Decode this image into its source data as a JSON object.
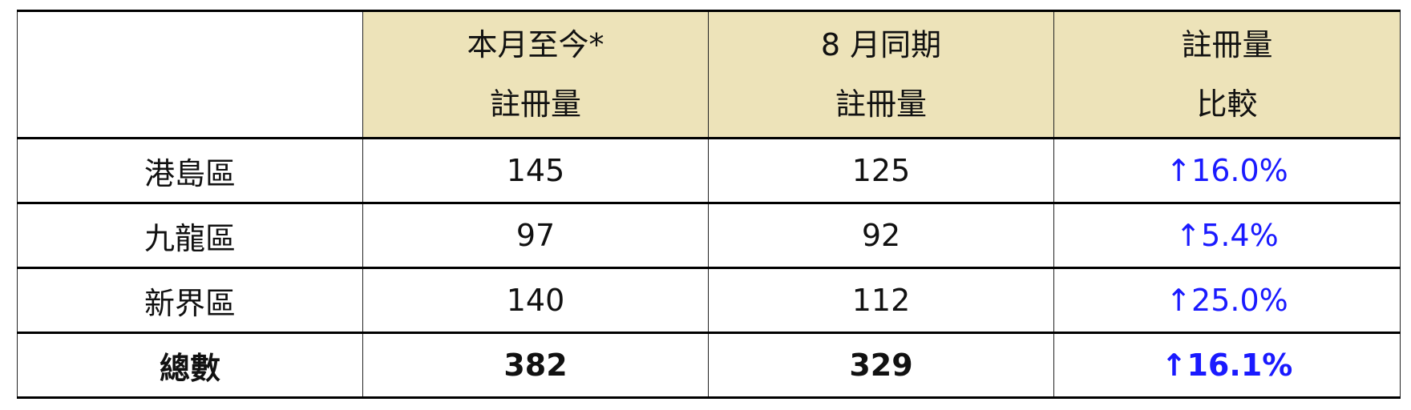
{
  "header": {
    "col1": {
      "line1": "本月至今*",
      "line2": "註冊量"
    },
    "col2": {
      "line1": "8 月同期",
      "line2": "註冊量"
    },
    "col3": {
      "line1": "註冊量",
      "line2": "比較"
    }
  },
  "rows": [
    {
      "region": "港島區",
      "current": "145",
      "same_period": "125",
      "change": "↑16.0%"
    },
    {
      "region": "九龍區",
      "current": "97",
      "same_period": "92",
      "change": "↑5.4%"
    },
    {
      "region": "新界區",
      "current": "140",
      "same_period": "112",
      "change": "↑25.0%"
    }
  ],
  "total": {
    "label": "總數",
    "current": "382",
    "same_period": "329",
    "change": "↑16.1%"
  },
  "colors": {
    "header_bg": "#ede3b9",
    "increase": "#1a1aff"
  }
}
